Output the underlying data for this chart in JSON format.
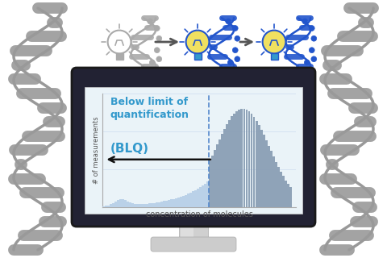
{
  "xlabel": "concentration of molecules",
  "ylabel": "# of measurements",
  "blq_label_line1": "Below limit of",
  "blq_label_line2": "quantification",
  "blq_label_abbr": "(BLQ)",
  "bg_color": "#ffffff",
  "blq_color": "#b8d0e8",
  "above_color": "#8a9fb5",
  "dashed_line_color": "#5588cc",
  "text_color": "#3399cc",
  "arrow_color": "#111111",
  "blq_threshold": 0.56,
  "monitor_border": "#1a1a1a",
  "monitor_fill": "#222233",
  "screen_bg": "#eaf3f8",
  "stand_color": "#bbbbbb",
  "dna_color": "#999999",
  "dna_rung_color": "#aaaaaa",
  "icon_gray": "#aaaaaa",
  "icon_blue": "#2255cc",
  "bulb_yellow": "#f0e060",
  "bulb_base_blue": "#3399cc"
}
